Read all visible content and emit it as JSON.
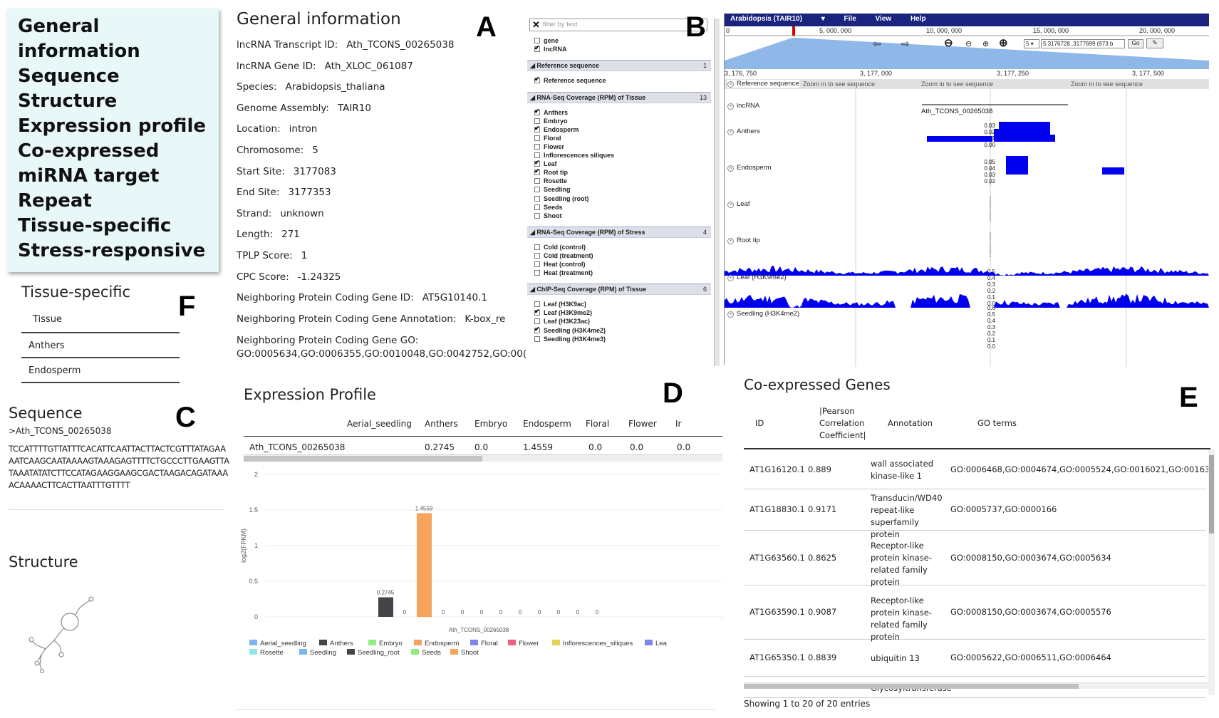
{
  "nav": {
    "items": [
      "General information",
      "Sequence",
      "Structure",
      "Expression profile",
      "Co-expressed",
      "miRNA target",
      "Repeat",
      "Tissue-specific",
      "Stress-responsive"
    ],
    "display_lines": [
      "General",
      "information",
      "Sequence",
      "Structure",
      "Expression profile",
      "Co-expressed",
      "miRNA target",
      "Repeat",
      "Tissue-specific",
      "Stress-responsive"
    ]
  },
  "panel_letters": {
    "a": "A",
    "b": "B",
    "c": "C",
    "d": "D",
    "e": "E",
    "f": "F"
  },
  "general": {
    "title": "General information",
    "fields": [
      {
        "label": "lncRNA Transcript ID:",
        "value": "Ath_TCONS_00265038"
      },
      {
        "label": "lncRNA Gene ID:",
        "value": "Ath_XLOC_061087"
      },
      {
        "label": "Species:",
        "value": "Arabidopsis_thaliana"
      },
      {
        "label": "Genome Assembly:",
        "value": "TAIR10"
      },
      {
        "label": "Location:",
        "value": "intron"
      },
      {
        "label": "Chromosome:",
        "value": "5"
      },
      {
        "label": "Start Site:",
        "value": "3177083"
      },
      {
        "label": "End Site:",
        "value": "3177353"
      },
      {
        "label": "Strand:",
        "value": "unknown"
      },
      {
        "label": "Length:",
        "value": "271"
      },
      {
        "label": "TPLP Score:",
        "value": "1"
      },
      {
        "label": "CPC Score:",
        "value": "-1.24325"
      },
      {
        "label": "Neighboring Protein Coding Gene ID:",
        "value": "AT5G10140.1"
      },
      {
        "label": "Neighboring Protein Coding Gene Annotation:",
        "value": "K-box_re"
      }
    ],
    "go_label": "Neighboring Protein Coding Gene GO:",
    "go_value": "GO:0005634,GO:0006355,GO:0010048,GO:0042752,GO:00("
  },
  "tracks": {
    "filter_placeholder": "filter by text",
    "top_items": [
      {
        "label": "gene",
        "checked": false
      },
      {
        "label": "lncRNA",
        "checked": true
      }
    ],
    "groups": [
      {
        "title": "Reference sequence",
        "count": "1",
        "items": [
          {
            "label": "Reference sequence",
            "checked": true
          }
        ]
      },
      {
        "title": "RNA-Seq Coverage (RPM) of Tissue",
        "count": "13",
        "items": [
          {
            "label": "Anthers",
            "checked": true
          },
          {
            "label": "Embryo",
            "checked": false
          },
          {
            "label": "Endosperm",
            "checked": true
          },
          {
            "label": "Floral",
            "checked": false
          },
          {
            "label": "Flower",
            "checked": false
          },
          {
            "label": "Inflorescences siliques",
            "checked": false
          },
          {
            "label": "Leaf",
            "checked": true
          },
          {
            "label": "Root tip",
            "checked": true
          },
          {
            "label": "Rosette",
            "checked": false
          },
          {
            "label": "Seedling",
            "checked": false
          },
          {
            "label": "Seedling (root)",
            "checked": false
          },
          {
            "label": "Seeds",
            "checked": false
          },
          {
            "label": "Shoot",
            "checked": false
          }
        ]
      },
      {
        "title": "RNA-Seq Coverage (RPM) of Stress",
        "count": "4",
        "items": [
          {
            "label": "Cold (control)",
            "checked": false
          },
          {
            "label": "Cold (treatment)",
            "checked": false
          },
          {
            "label": "Heat (control)",
            "checked": false
          },
          {
            "label": "Heat (treatment)",
            "checked": false
          }
        ]
      },
      {
        "title": "ChIP-Seq Coverage (RPM) of Tissue",
        "count": "6",
        "items": [
          {
            "label": "Leaf (H3K9ac)",
            "checked": false
          },
          {
            "label": "Leaf (H3K9me2)",
            "checked": true
          },
          {
            "label": "Leaf (H3K23ac)",
            "checked": false
          },
          {
            "label": "Seedling (H3K4me2)",
            "checked": true
          },
          {
            "label": "Seedling (H3K4me3)",
            "checked": false
          }
        ]
      }
    ]
  },
  "browser": {
    "genome_label": "Arabidopsis (TAIR10)",
    "menu": [
      "File",
      "View",
      "Help"
    ],
    "ruler_ticks": [
      "0",
      "5, 000, 000",
      "10, 000, 000",
      "15, 000, 000",
      "20, 000, 000"
    ],
    "zoom_ticks": [
      "3, 176, 750",
      "3, 177, 000",
      "3, 177, 250",
      "3, 177, 500"
    ],
    "location": "5:3176728..3177699 (973 b",
    "chrom_select": "5",
    "go_label": "Go",
    "seq_note": "Zoom in to see sequence",
    "seq_track_label": "Reference sequence",
    "lncrna_label": "lncRNA",
    "feature_name": "Ath_TCONS_00265038",
    "tracks": [
      {
        "label": "Anthers",
        "scale": [
          "0.03",
          "0.02",
          "0.01",
          "0.00"
        ]
      },
      {
        "label": "Endosperm",
        "scale": [
          "0.05",
          "0.04",
          "0.03",
          "0.02"
        ]
      },
      {
        "label": "Leaf",
        "scale": []
      },
      {
        "label": "Root tip",
        "scale": []
      },
      {
        "label": "Leaf (H3K9me2)",
        "scale": [
          "0.5",
          "0.4",
          "0.3",
          "0.2",
          "0.1",
          "0.0"
        ]
      },
      {
        "label": "Seedling (H3K4me2)",
        "scale": [
          "0.6",
          "0.5",
          "0.4",
          "0.3",
          "0.2",
          "0.1",
          "0.0"
        ]
      }
    ],
    "accent_color": "#1a237e",
    "feature_color": "#0000ee"
  },
  "tissue": {
    "title": "Tissue-specific",
    "header": "Tissue",
    "rows": [
      "Anthers",
      "Endosperm"
    ]
  },
  "sequence": {
    "title": "Sequence",
    "id": ">Ath_TCONS_00265038",
    "lines": [
      "TCCATTTTGTTATTTCACATTCAATTACTTACTCGTTTATAGAA",
      "AATCAAGCAATAAAAGTAAAGAGTTTTCTGCCCTTGAAGTTA",
      "TAAATATATCTTCCATAGAAGGAAGCGACTAAGACAGATAAA",
      "ACAAAACTTCACTTAATTTGTTTT"
    ]
  },
  "structure": {
    "title": "Structure"
  },
  "expression": {
    "title": "Expression Profile",
    "columns": [
      "Aerial_seedling",
      "Anthers",
      "Embryo",
      "Endosperm",
      "Floral",
      "Flower",
      "Ir"
    ],
    "row_id": "Ath_TCONS_00265038",
    "row_values": [
      "",
      "0.2745",
      "0.0",
      "1.4559",
      "0.0",
      "0.0",
      "0.0"
    ]
  },
  "chart_data": {
    "type": "bar",
    "title": "",
    "xlabel": "Ath_TCONS_00265038",
    "ylabel": "log2(FPKM)",
    "ylim": [
      0,
      2
    ],
    "yticks": [
      "0",
      "0.5",
      "1",
      "1.5",
      "2"
    ],
    "grid": true,
    "legend_position": "bottom",
    "categories": [
      "Aerial_seedling",
      "Anthers",
      "Embryo",
      "Endosperm",
      "Floral",
      "Flower",
      "Inflorescences_siliques",
      "Leaf",
      "Rosette",
      "Seedling",
      "Seedling_root",
      "Seeds",
      "Shoot"
    ],
    "values": [
      null,
      0.2745,
      0,
      1.4559,
      0,
      0,
      0,
      0,
      0,
      0,
      0,
      0,
      0
    ],
    "value_labels": [
      "",
      "0.2745",
      "0",
      "1.4559",
      "0",
      "0",
      "0",
      "0",
      "0",
      "0",
      "0",
      "0",
      "0"
    ],
    "colors": [
      "#7cb5ec",
      "#434348",
      "#90ed7d",
      "#f7a35c",
      "#8085e9",
      "#f15c80",
      "#e4d354",
      "#8085e8",
      "#8ee6e6",
      "#7cb5ec",
      "#434348",
      "#90ed7d",
      "#f7a35c"
    ],
    "legend": [
      "Aerial_seedling",
      "Anthers",
      "Embryo",
      "Endosperm",
      "Floral",
      "Flower",
      "Inflorescences_siliques",
      "Lea",
      "Rosette",
      "Seedling",
      "Seedling_root",
      "Seeds",
      "Shoot"
    ]
  },
  "coexpressed": {
    "title": "Co-expressed Genes",
    "headers": {
      "id": "ID",
      "pcc": [
        "|Pearson",
        "Correlation",
        "Coefficient|"
      ],
      "annotation": "Annotation",
      "go": "GO terms"
    },
    "rows": [
      {
        "id": "AT1G16120.1",
        "pcc": "0.889",
        "annotation": "wall associated kinase-like 1",
        "go": "GO:0006468,GO:0004674,GO:0005524,GO:0016021,GO:00163("
      },
      {
        "id": "AT1G18830.1",
        "pcc": "0.9171",
        "annotation": "Transducin/WD40 repeat-like superfamily protein",
        "go": "GO:0005737,GO:0000166"
      },
      {
        "id": "AT1G63560.1",
        "pcc": "0.8625",
        "annotation": "Receptor-like protein kinase-related family protein",
        "go": "GO:0008150,GO:0003674,GO:0005634"
      },
      {
        "id": "AT1G63590.1",
        "pcc": "0.9087",
        "annotation": "Receptor-like protein kinase-related family protein",
        "go": "GO:0008150,GO:0003674,GO:0005576"
      },
      {
        "id": "AT1G65350.1",
        "pcc": "0.8839",
        "annotation": "ubiquitin 13",
        "go": "GO:0005622,GO:0006511,GO:0006464"
      },
      {
        "id": "",
        "pcc": "",
        "annotation": "Glycosyltransferase",
        "go": ""
      }
    ],
    "footer": "Showing 1 to 20 of 20 entries"
  }
}
